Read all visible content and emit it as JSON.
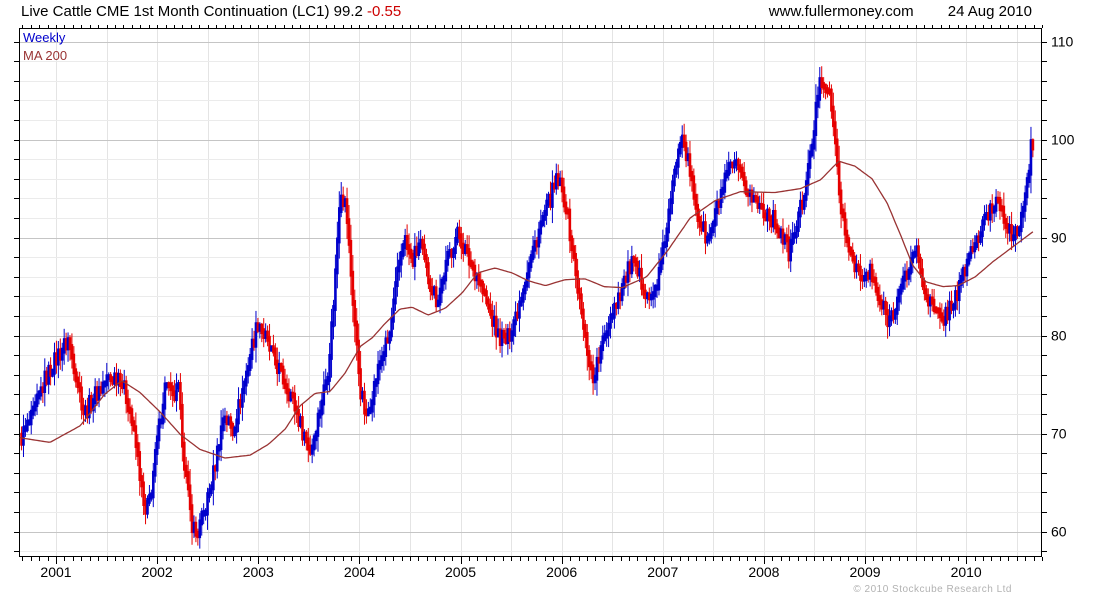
{
  "header": {
    "title_main": "Live Cattle CME 1st Month Continuation (LC1) 99.2 ",
    "title_change": "-0.55",
    "website": "www.fullermoney.com",
    "date": "24 Aug 2010"
  },
  "legend": {
    "weekly_label": "Weekly",
    "ma_label": "MA 200"
  },
  "footer": {
    "copyright": "© 2010 Stockcube Research Ltd"
  },
  "colors": {
    "title_text": "#000000",
    "change_red": "#cc0000",
    "legend_weekly": "#0000cc",
    "legend_ma": "#993333",
    "bar_up": "#0000cc",
    "bar_down": "#e60000",
    "ma_line": "#993333",
    "grid_minor": "#ebebeb",
    "grid_major": "#c5c5c5",
    "grid_vertical": "#e4e4e4",
    "border": "#000000",
    "copyright_gray": "#b2b2b2"
  },
  "chart_data": {
    "type": "bar",
    "subtype": "weekly-price-bars-with-moving-average",
    "title": "Live Cattle CME 1st Month Continuation (LC1)",
    "last": {
      "price": 99.2,
      "change": -0.55,
      "date": "24 Aug 2010"
    },
    "x_axis": {
      "t_start": 2000.634,
      "t_end": 2010.75,
      "data_start": 2000.64,
      "data_end": 2010.66,
      "label_years": [
        2001,
        2002,
        2003,
        2004,
        2005,
        2006,
        2007,
        2008,
        2009,
        2010
      ],
      "grid_interval_years": 0.5,
      "tick_interval_years": 0.0833
    },
    "y_axis": {
      "v_min": 57.4,
      "v_max": 111.4,
      "labels": [
        60,
        70,
        80,
        90,
        100,
        110
      ],
      "tick_interval": 2,
      "grid_minor_interval": 2,
      "grid_major_interval": 10,
      "side": "right"
    },
    "series": [
      {
        "name": "Weekly",
        "style": "bars",
        "keypoints": [
          [
            2000.64,
            69.3
          ],
          [
            2000.76,
            71.5
          ],
          [
            2000.89,
            75.5
          ],
          [
            2001.02,
            78
          ],
          [
            2001.12,
            79.5
          ],
          [
            2001.2,
            76
          ],
          [
            2001.28,
            72
          ],
          [
            2001.39,
            74
          ],
          [
            2001.51,
            75.5
          ],
          [
            2001.63,
            76
          ],
          [
            2001.73,
            72.5
          ],
          [
            2001.81,
            67.5
          ],
          [
            2001.88,
            61.5
          ],
          [
            2001.94,
            64
          ],
          [
            2002.01,
            70
          ],
          [
            2002.09,
            75.5
          ],
          [
            2002.15,
            73.5
          ],
          [
            2002.21,
            74.5
          ],
          [
            2002.27,
            67
          ],
          [
            2002.34,
            61
          ],
          [
            2002.39,
            59.6
          ],
          [
            2002.47,
            62
          ],
          [
            2002.55,
            65.5
          ],
          [
            2002.66,
            72
          ],
          [
            2002.75,
            70.3
          ],
          [
            2002.86,
            75
          ],
          [
            2002.94,
            79
          ],
          [
            2003.0,
            81.5
          ],
          [
            2003.08,
            79.5
          ],
          [
            2003.16,
            77.5
          ],
          [
            2003.25,
            75.5
          ],
          [
            2003.34,
            73.5
          ],
          [
            2003.43,
            70.5
          ],
          [
            2003.52,
            68.2
          ],
          [
            2003.61,
            72.5
          ],
          [
            2003.69,
            76.5
          ],
          [
            2003.75,
            84
          ],
          [
            2003.81,
            95
          ],
          [
            2003.87,
            93
          ],
          [
            2003.94,
            83
          ],
          [
            2004.01,
            74.5
          ],
          [
            2004.07,
            71.5
          ],
          [
            2004.14,
            74.5
          ],
          [
            2004.21,
            77.5
          ],
          [
            2004.3,
            80
          ],
          [
            2004.38,
            86.5
          ],
          [
            2004.44,
            90
          ],
          [
            2004.52,
            87.5
          ],
          [
            2004.6,
            89.5
          ],
          [
            2004.68,
            86
          ],
          [
            2004.77,
            83.5
          ],
          [
            2004.88,
            88
          ],
          [
            2004.98,
            90.5
          ],
          [
            2005.07,
            88
          ],
          [
            2005.17,
            86
          ],
          [
            2005.27,
            83
          ],
          [
            2005.37,
            80
          ],
          [
            2005.46,
            79.5
          ],
          [
            2005.56,
            82.5
          ],
          [
            2005.66,
            86.5
          ],
          [
            2005.77,
            90.5
          ],
          [
            2005.87,
            93.5
          ],
          [
            2005.96,
            96
          ],
          [
            2006.04,
            93.5
          ],
          [
            2006.13,
            87
          ],
          [
            2006.22,
            80.5
          ],
          [
            2006.31,
            75.5
          ],
          [
            2006.39,
            78.5
          ],
          [
            2006.48,
            82
          ],
          [
            2006.58,
            84.5
          ],
          [
            2006.69,
            87.5
          ],
          [
            2006.79,
            85.5
          ],
          [
            2006.89,
            83.5
          ],
          [
            2006.97,
            86.5
          ],
          [
            2007.07,
            93
          ],
          [
            2007.15,
            99
          ],
          [
            2007.19,
            101
          ],
          [
            2007.27,
            96.5
          ],
          [
            2007.35,
            92
          ],
          [
            2007.45,
            89.5
          ],
          [
            2007.55,
            93.5
          ],
          [
            2007.64,
            96.5
          ],
          [
            2007.71,
            97.5
          ],
          [
            2007.8,
            95.5
          ],
          [
            2007.89,
            94
          ],
          [
            2007.98,
            93
          ],
          [
            2008.08,
            92
          ],
          [
            2008.17,
            90.5
          ],
          [
            2008.25,
            88.5
          ],
          [
            2008.33,
            91.5
          ],
          [
            2008.42,
            95.5
          ],
          [
            2008.49,
            100.5
          ],
          [
            2008.55,
            106.5
          ],
          [
            2008.61,
            105.5
          ],
          [
            2008.67,
            103.5
          ],
          [
            2008.73,
            96.5
          ],
          [
            2008.8,
            90
          ],
          [
            2008.88,
            88
          ],
          [
            2008.97,
            85.5
          ],
          [
            2009.05,
            86.5
          ],
          [
            2009.14,
            83.5
          ],
          [
            2009.24,
            81.5
          ],
          [
            2009.33,
            84
          ],
          [
            2009.42,
            86.5
          ],
          [
            2009.5,
            89
          ],
          [
            2009.58,
            85
          ],
          [
            2009.66,
            83
          ],
          [
            2009.75,
            81.5
          ],
          [
            2009.85,
            83
          ],
          [
            2009.94,
            85
          ],
          [
            2010.02,
            88
          ],
          [
            2010.12,
            90
          ],
          [
            2010.22,
            92.5
          ],
          [
            2010.32,
            94
          ],
          [
            2010.4,
            91.5
          ],
          [
            2010.47,
            89.5
          ],
          [
            2010.54,
            92
          ],
          [
            2010.6,
            95
          ],
          [
            2010.65,
            98.5
          ],
          [
            2010.66,
            99.2
          ]
        ]
      },
      {
        "name": "MA 200",
        "style": "line",
        "keypoints": [
          [
            2000.63,
            69.6
          ],
          [
            2000.94,
            69.1
          ],
          [
            2001.24,
            70.8
          ],
          [
            2001.48,
            74.0
          ],
          [
            2001.65,
            75.4
          ],
          [
            2001.83,
            74.2
          ],
          [
            2002.03,
            72.2
          ],
          [
            2002.23,
            69.9
          ],
          [
            2002.42,
            68.4
          ],
          [
            2002.67,
            67.5
          ],
          [
            2002.92,
            67.8
          ],
          [
            2003.1,
            68.9
          ],
          [
            2003.27,
            70.5
          ],
          [
            2003.41,
            72.8
          ],
          [
            2003.56,
            74.1
          ],
          [
            2003.71,
            74.3
          ],
          [
            2003.86,
            76.2
          ],
          [
            2004.01,
            78.9
          ],
          [
            2004.13,
            79.8
          ],
          [
            2004.25,
            81.2
          ],
          [
            2004.4,
            82.7
          ],
          [
            2004.52,
            82.9
          ],
          [
            2004.68,
            82.1
          ],
          [
            2004.85,
            82.8
          ],
          [
            2005.02,
            84.4
          ],
          [
            2005.17,
            86.4
          ],
          [
            2005.34,
            86.9
          ],
          [
            2005.51,
            86.4
          ],
          [
            2005.67,
            85.6
          ],
          [
            2005.84,
            85.1
          ],
          [
            2006.03,
            85.7
          ],
          [
            2006.23,
            85.8
          ],
          [
            2006.42,
            85.0
          ],
          [
            2006.6,
            84.9
          ],
          [
            2006.84,
            86.0
          ],
          [
            2007.05,
            88.7
          ],
          [
            2007.27,
            92.0
          ],
          [
            2007.52,
            93.8
          ],
          [
            2007.77,
            94.7
          ],
          [
            2008.11,
            94.6
          ],
          [
            2008.36,
            95.0
          ],
          [
            2008.56,
            95.9
          ],
          [
            2008.74,
            97.8
          ],
          [
            2008.9,
            97.3
          ],
          [
            2009.07,
            96.0
          ],
          [
            2009.22,
            93.5
          ],
          [
            2009.35,
            90.3
          ],
          [
            2009.47,
            87.2
          ],
          [
            2009.6,
            85.5
          ],
          [
            2009.77,
            85.0
          ],
          [
            2009.92,
            85.1
          ],
          [
            2010.09,
            86.0
          ],
          [
            2010.26,
            87.5
          ],
          [
            2010.44,
            88.9
          ],
          [
            2010.66,
            90.6
          ]
        ]
      }
    ]
  }
}
